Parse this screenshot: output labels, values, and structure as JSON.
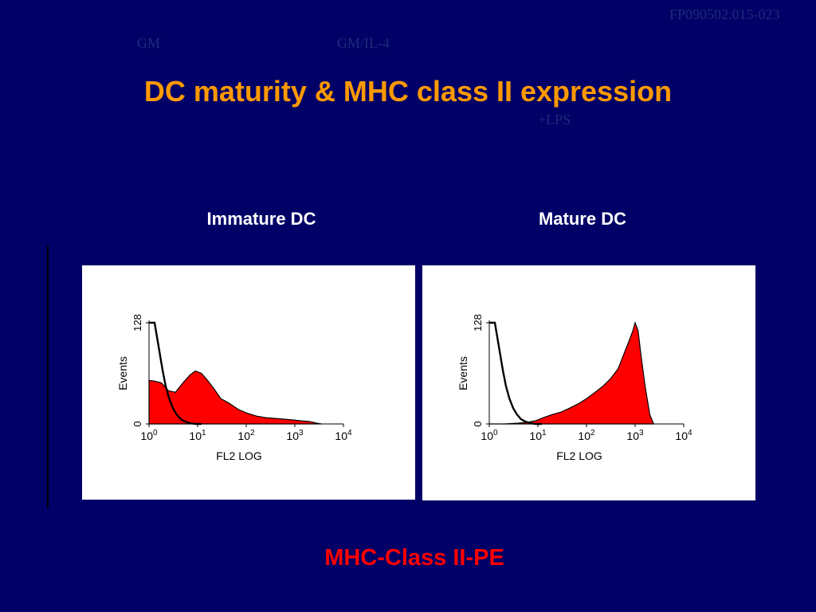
{
  "slide": {
    "title": "DC maturity & MHC class II expression",
    "ref_code": "FP090502.015-023",
    "ghost_labels": {
      "gm": "GM",
      "gm_il4": "GM/IL-4",
      "lps": "+LPS"
    },
    "bottom_label": "MHC-Class II-PE"
  },
  "colors": {
    "background": "#000066",
    "title": "#ff9900",
    "fill": "#ff0000",
    "bottom_label": "#ff0000"
  },
  "chart_data": [
    {
      "type": "area",
      "panel_title": "Immature DC",
      "xlabel": "FL2 LOG",
      "ylabel": "Events",
      "x_scale": "log",
      "xlim": [
        1,
        10000
      ],
      "x_ticks": [
        {
          "base": "10",
          "exp": "0"
        },
        {
          "base": "10",
          "exp": "1"
        },
        {
          "base": "10",
          "exp": "2"
        },
        {
          "base": "10",
          "exp": "3"
        },
        {
          "base": "10",
          "exp": "4"
        }
      ],
      "ylim": [
        0,
        128
      ],
      "y_ticks": [
        "0",
        "128"
      ],
      "stained": {
        "fill": "#ff0000",
        "x": [
          1,
          1.3,
          1.8,
          2.5,
          3.5,
          5,
          7,
          9,
          12,
          16,
          22,
          30,
          45,
          70,
          100,
          160,
          250,
          400,
          600,
          900,
          1300,
          2000,
          2800,
          3500
        ],
        "y": [
          55,
          54,
          52,
          42,
          40,
          52,
          62,
          67,
          64,
          55,
          44,
          32,
          26,
          18,
          14,
          10,
          8,
          7,
          6,
          5,
          4,
          3,
          1,
          0
        ]
      },
      "control": {
        "stroke": "#000000",
        "x": [
          1,
          1.3,
          1.6,
          1.9,
          2.2,
          2.6,
          3.1,
          3.7,
          4.5,
          5.5,
          7,
          9,
          12
        ],
        "y": [
          128,
          128,
          95,
          68,
          48,
          32,
          20,
          12,
          6,
          3,
          1,
          0,
          0
        ]
      }
    },
    {
      "type": "area",
      "panel_title": "Mature DC",
      "xlabel": "FL2 LOG",
      "ylabel": "Events",
      "x_scale": "log",
      "xlim": [
        1,
        10000
      ],
      "x_ticks": [
        {
          "base": "10",
          "exp": "0"
        },
        {
          "base": "10",
          "exp": "1"
        },
        {
          "base": "10",
          "exp": "2"
        },
        {
          "base": "10",
          "exp": "3"
        },
        {
          "base": "10",
          "exp": "4"
        }
      ],
      "ylim": [
        0,
        128
      ],
      "y_ticks": [
        "0",
        "128"
      ],
      "stained": {
        "fill": "#ff0000",
        "x": [
          1,
          2,
          4,
          6,
          9,
          13,
          20,
          30,
          45,
          70,
          100,
          150,
          220,
          320,
          450,
          600,
          750,
          900,
          1000,
          1150,
          1300,
          1600,
          2000,
          2400
        ],
        "y": [
          0,
          0,
          1,
          2,
          4,
          8,
          12,
          15,
          20,
          26,
          32,
          40,
          48,
          58,
          70,
          90,
          105,
          118,
          128,
          118,
          90,
          48,
          12,
          0
        ]
      },
      "control": {
        "stroke": "#000000",
        "x": [
          1,
          1.3,
          1.6,
          1.9,
          2.2,
          2.6,
          3.1,
          3.7,
          4.5,
          5.5,
          7,
          9,
          12
        ],
        "y": [
          128,
          128,
          95,
          68,
          48,
          32,
          20,
          12,
          6,
          3,
          1,
          0,
          0
        ]
      }
    }
  ]
}
